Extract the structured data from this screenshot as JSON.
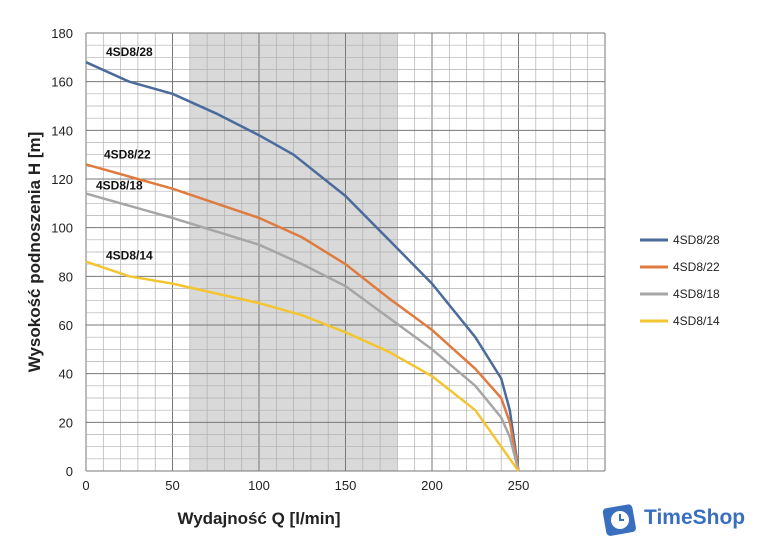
{
  "chart_data": {
    "type": "line",
    "xlabel": "Wydajność Q [l/min]",
    "ylabel": "Wysokość podnoszenia H [m]",
    "xlim": [
      0,
      300
    ],
    "ylim": [
      0,
      180
    ],
    "xticks": [
      0,
      50,
      100,
      150,
      200,
      250
    ],
    "yticks": [
      0,
      20,
      40,
      60,
      80,
      100,
      120,
      140,
      160,
      180
    ],
    "grid": true,
    "shaded_range": [
      60,
      180
    ],
    "legend_position": "right",
    "series": [
      {
        "name": "4SD8/28",
        "color": "#4a6b9c",
        "x": [
          0,
          25,
          50,
          75,
          100,
          120,
          150,
          175,
          200,
          225,
          240,
          245,
          250
        ],
        "y": [
          168,
          160,
          155,
          147,
          138,
          130,
          113,
          95,
          77,
          55,
          38,
          25,
          0
        ]
      },
      {
        "name": "4SD8/22",
        "color": "#e07b3f",
        "x": [
          0,
          50,
          100,
          125,
          150,
          175,
          200,
          225,
          240,
          245,
          250
        ],
        "y": [
          126,
          116,
          104,
          96,
          85,
          71,
          58,
          42,
          30,
          20,
          0
        ]
      },
      {
        "name": "4SD8/18",
        "color": "#a6a6a6",
        "x": [
          0,
          50,
          100,
          125,
          150,
          175,
          200,
          225,
          240,
          245,
          250
        ],
        "y": [
          114,
          104,
          93,
          85,
          76,
          63,
          50,
          35,
          22,
          14,
          0
        ]
      },
      {
        "name": "4SD8/14",
        "color": "#f2c531",
        "x": [
          0,
          25,
          50,
          100,
          125,
          150,
          175,
          200,
          225,
          240,
          245,
          250
        ],
        "y": [
          86,
          80,
          77,
          69,
          64,
          57,
          49,
          39,
          25,
          10,
          5,
          0
        ]
      }
    ]
  },
  "logo": {
    "text": "TimeShop"
  }
}
